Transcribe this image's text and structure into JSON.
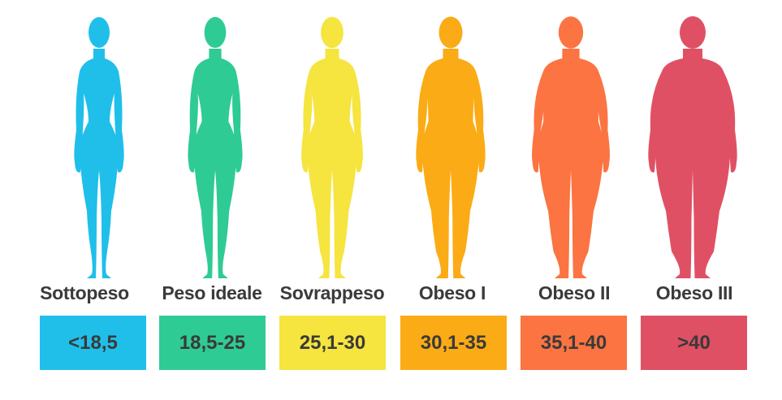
{
  "categories": [
    {
      "label": "Sottopeso",
      "range": "<18,5",
      "color": "#1fbfea",
      "fat": 0.0
    },
    {
      "label": "Peso ideale",
      "range": "18,5-25",
      "color": "#2fcb94",
      "fat": 0.12
    },
    {
      "label": "Sovrappeso",
      "range": "25,1-30",
      "color": "#f6e43f",
      "fat": 0.3
    },
    {
      "label": "Obeso I",
      "range": "30,1-35",
      "color": "#fbab15",
      "fat": 0.5
    },
    {
      "label": "Obeso II",
      "range": "35,1-40",
      "color": "#fb7441",
      "fat": 0.72
    },
    {
      "label": "Obeso III",
      "range": ">40",
      "color": "#e05064",
      "fat": 1.0
    }
  ]
}
